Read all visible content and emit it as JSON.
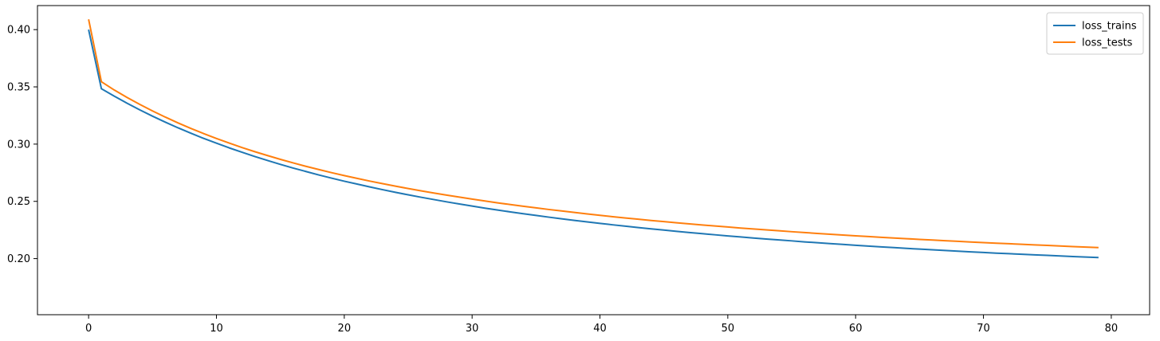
{
  "chart_data": {
    "type": "line",
    "title": "",
    "xlabel": "",
    "ylabel": "",
    "xlim": [
      -4.0,
      83.0
    ],
    "ylim": [
      0.151,
      0.421
    ],
    "x_ticks": [
      0,
      10,
      20,
      30,
      40,
      50,
      60,
      70,
      80
    ],
    "x_tick_labels": [
      "0",
      "10",
      "20",
      "30",
      "40",
      "50",
      "60",
      "70",
      "80"
    ],
    "y_ticks": [
      0.2,
      0.25,
      0.3,
      0.35,
      0.4
    ],
    "y_tick_labels": [
      "0.20",
      "0.25",
      "0.30",
      "0.35",
      "0.40"
    ],
    "grid": false,
    "legend_position": "top-right",
    "series": [
      {
        "name": "loss_trains",
        "color": "#1f77b4",
        "x": [
          0,
          1,
          2,
          3,
          4,
          5,
          6,
          7,
          8,
          9,
          10,
          11,
          12,
          13,
          14,
          15,
          16,
          17,
          18,
          19,
          20,
          21,
          22,
          23,
          24,
          25,
          26,
          27,
          28,
          29,
          30,
          31,
          32,
          33,
          34,
          35,
          36,
          37,
          38,
          39,
          40,
          41,
          42,
          43,
          44,
          45,
          46,
          47,
          48,
          49,
          50,
          51,
          52,
          53,
          54,
          55,
          56,
          57,
          58,
          59,
          60,
          61,
          62,
          63,
          64,
          65,
          66,
          67,
          68,
          69,
          70,
          71,
          72,
          73,
          74,
          75,
          76,
          77,
          78,
          79
        ],
        "values": [
          0.4,
          0.3484,
          0.3419,
          0.3358,
          0.3299,
          0.3244,
          0.3192,
          0.3142,
          0.3095,
          0.305,
          0.3008,
          0.2967,
          0.2929,
          0.2892,
          0.2857,
          0.2823,
          0.2791,
          0.2761,
          0.2731,
          0.2703,
          0.2676,
          0.2651,
          0.2626,
          0.2602,
          0.2579,
          0.2557,
          0.2536,
          0.2516,
          0.2496,
          0.2477,
          0.2459,
          0.2441,
          0.2424,
          0.2408,
          0.2392,
          0.2377,
          0.2362,
          0.2348,
          0.2334,
          0.2321,
          0.2308,
          0.2295,
          0.2283,
          0.2271,
          0.226,
          0.2249,
          0.2238,
          0.2228,
          0.2218,
          0.2208,
          0.2198,
          0.2189,
          0.218,
          0.2171,
          0.2163,
          0.2155,
          0.2146,
          0.2139,
          0.2131,
          0.2124,
          0.2116,
          0.2109,
          0.2102,
          0.2096,
          0.2089,
          0.2083,
          0.2077,
          0.2071,
          0.2065,
          0.2059,
          0.2054,
          0.2048,
          0.2043,
          0.2038,
          0.2033,
          0.2028,
          0.2023,
          0.2018,
          0.2014,
          0.2009
        ]
      },
      {
        "name": "loss_tests",
        "color": "#ff7f0e",
        "x": [
          0,
          1,
          2,
          3,
          4,
          5,
          6,
          7,
          8,
          9,
          10,
          11,
          12,
          13,
          14,
          15,
          16,
          17,
          18,
          19,
          20,
          21,
          22,
          23,
          24,
          25,
          26,
          27,
          28,
          29,
          30,
          31,
          32,
          33,
          34,
          35,
          36,
          37,
          38,
          39,
          40,
          41,
          42,
          43,
          44,
          45,
          46,
          47,
          48,
          49,
          50,
          51,
          52,
          53,
          54,
          55,
          56,
          57,
          58,
          59,
          60,
          61,
          62,
          63,
          64,
          65,
          66,
          67,
          68,
          69,
          70,
          71,
          72,
          73,
          74,
          75,
          76,
          77,
          78,
          79
        ],
        "values": [
          0.409,
          0.3545,
          0.3473,
          0.3408,
          0.3347,
          0.329,
          0.3236,
          0.3185,
          0.3137,
          0.3092,
          0.3049,
          0.3009,
          0.297,
          0.2934,
          0.29,
          0.2867,
          0.2836,
          0.2806,
          0.2778,
          0.2751,
          0.2725,
          0.2701,
          0.2677,
          0.2655,
          0.2633,
          0.2612,
          0.2592,
          0.2573,
          0.2555,
          0.2537,
          0.252,
          0.2503,
          0.2487,
          0.2472,
          0.2457,
          0.2443,
          0.2429,
          0.2416,
          0.2403,
          0.239,
          0.2378,
          0.2366,
          0.2355,
          0.2344,
          0.2333,
          0.2323,
          0.2313,
          0.2303,
          0.2294,
          0.2285,
          0.2276,
          0.2267,
          0.2259,
          0.2251,
          0.2243,
          0.2235,
          0.2228,
          0.222,
          0.2213,
          0.2206,
          0.2199,
          0.2193,
          0.2186,
          0.218,
          0.2174,
          0.2168,
          0.2162,
          0.2156,
          0.2151,
          0.2145,
          0.214,
          0.2135,
          0.213,
          0.2125,
          0.212,
          0.2115,
          0.211,
          0.2105,
          0.2101,
          0.2096
        ]
      }
    ]
  }
}
